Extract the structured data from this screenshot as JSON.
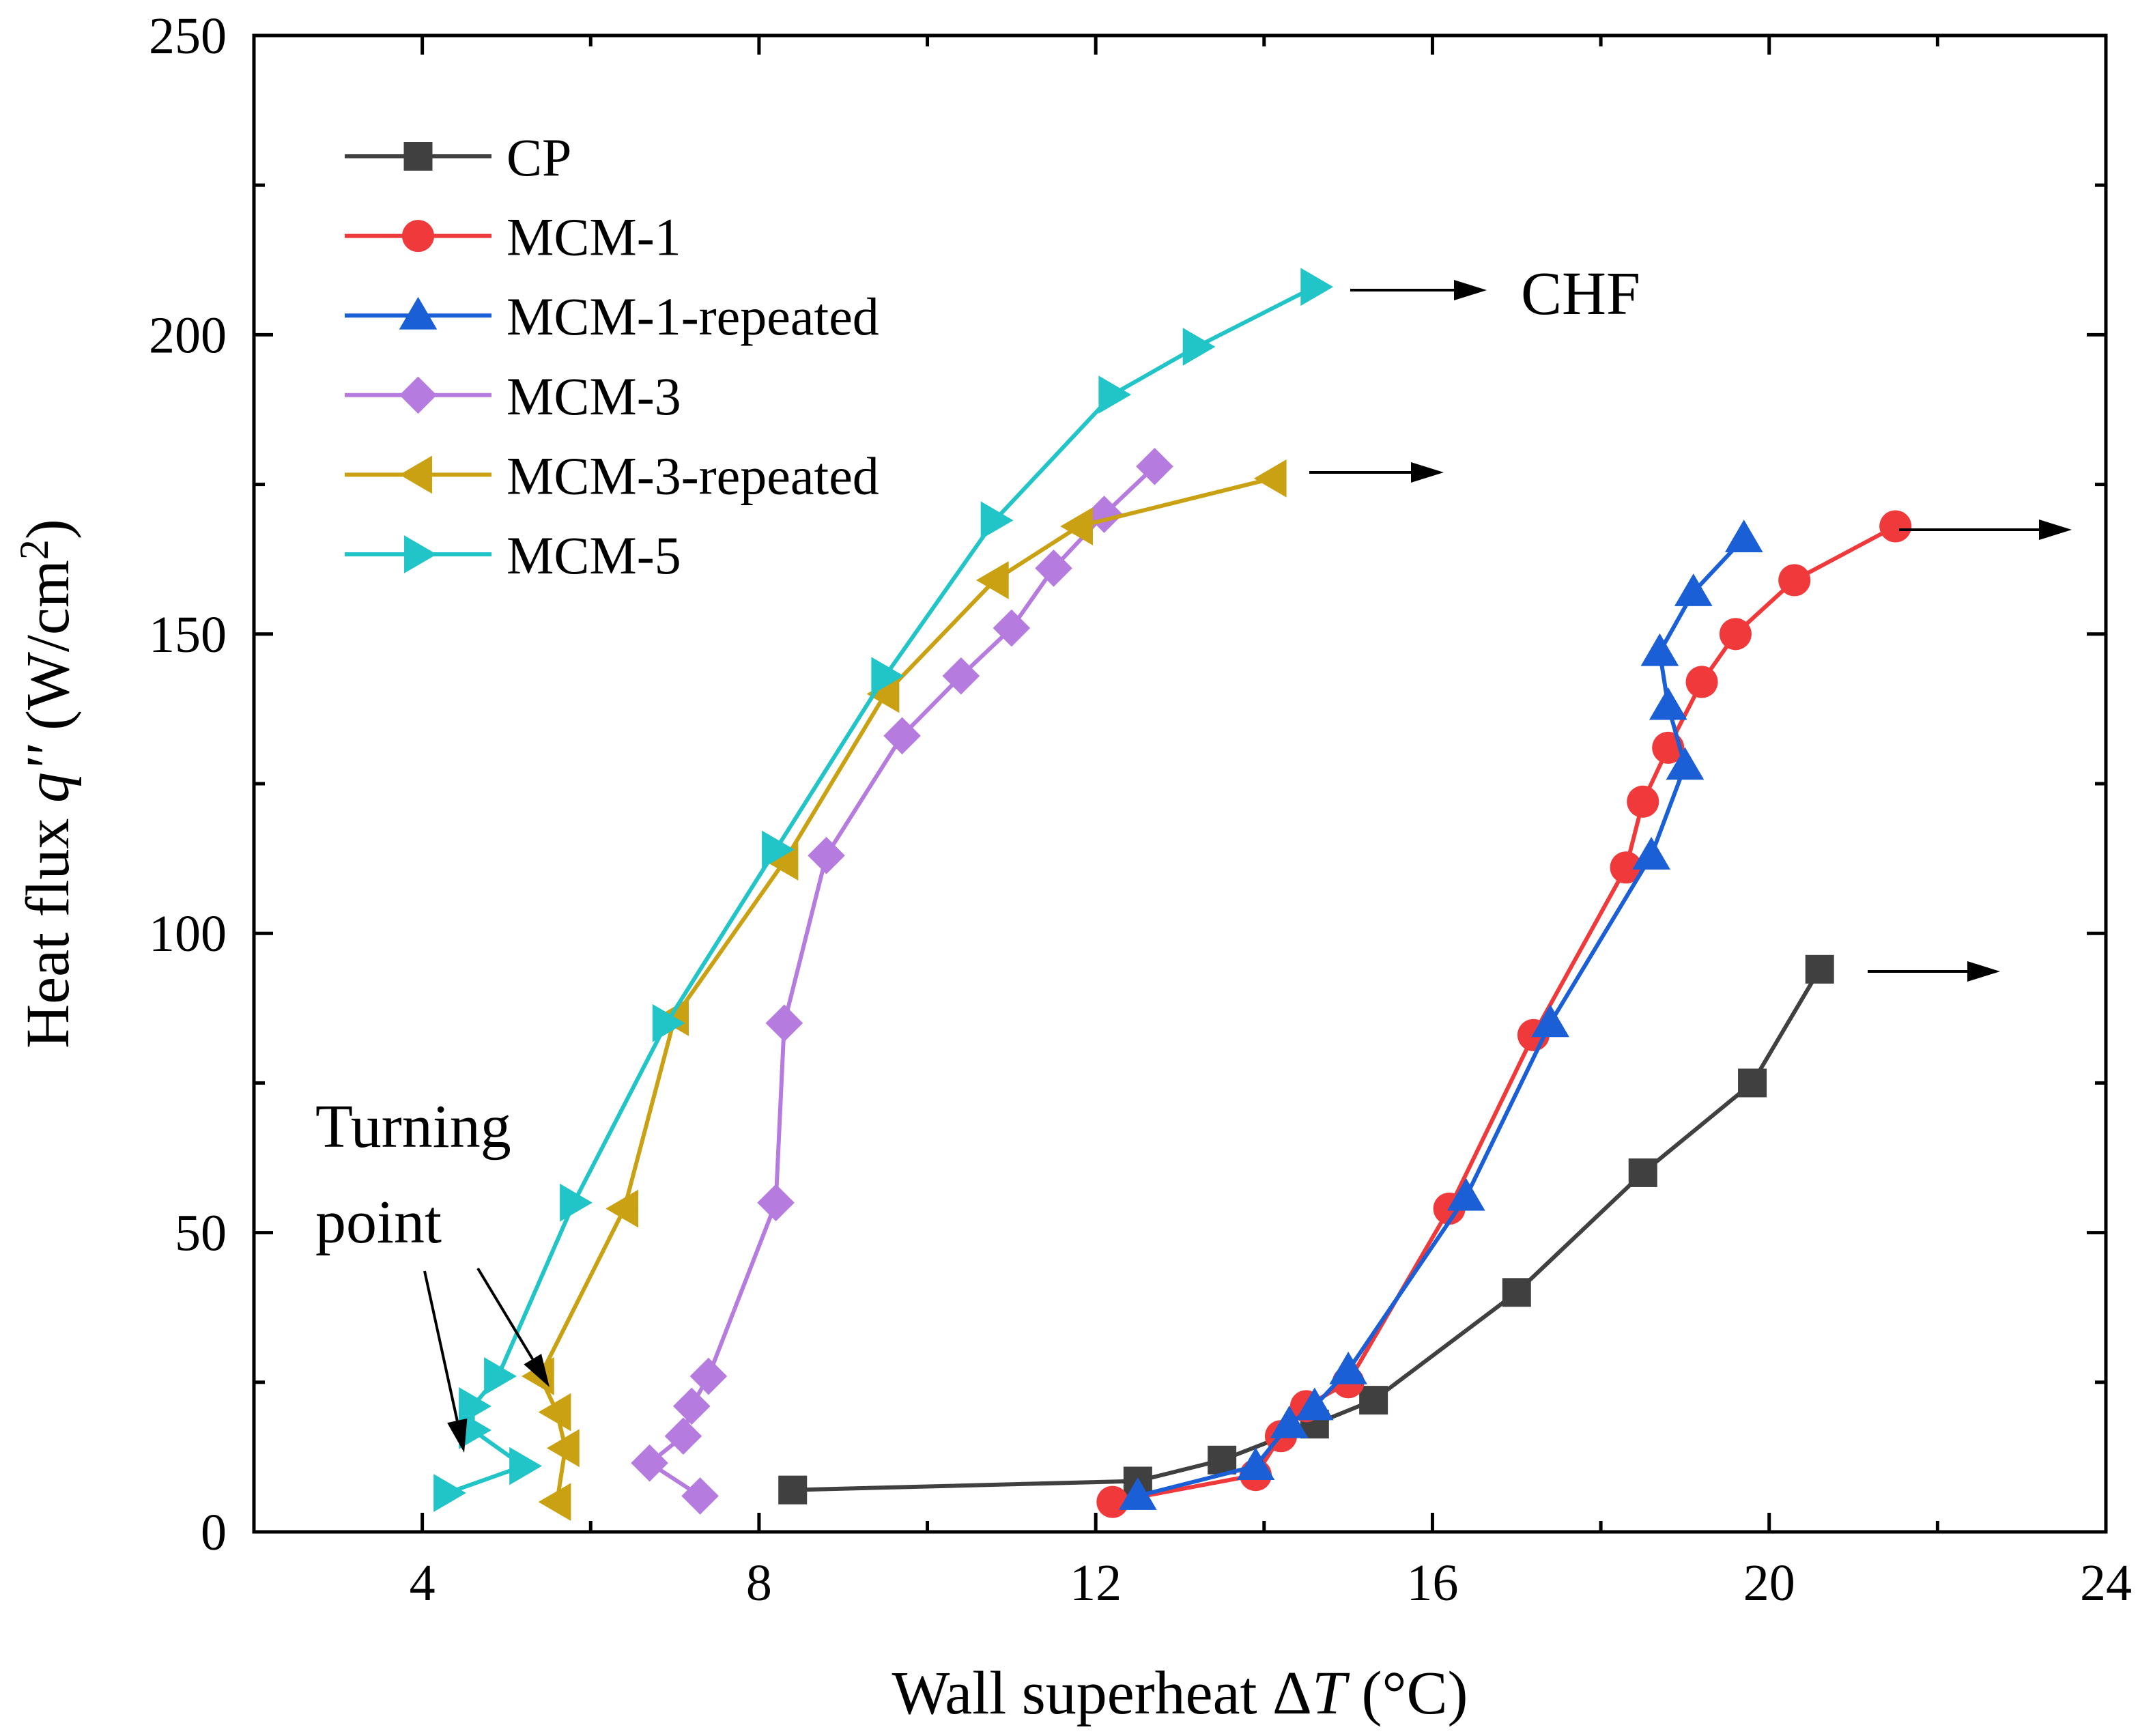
{
  "chart_data": {
    "type": "line",
    "xlabel": "Wall superheat ΔT (°C)",
    "ylabel": "Heat flux q'' (W/cm²)",
    "xlabel_parts": {
      "main": "Wall superheat Δ",
      "italic": "T",
      "unit": " (°C)"
    },
    "ylabel_parts": {
      "main": "Heat flux ",
      "italic": "q''",
      "unit": " (W/cm",
      "sup": "2",
      "close": ")"
    },
    "xlim": [
      2,
      24
    ],
    "ylim": [
      0,
      250
    ],
    "xticks": [
      4,
      8,
      12,
      16,
      20,
      24
    ],
    "yticks": [
      0,
      50,
      100,
      150,
      200,
      250
    ],
    "x_minor_step": 2,
    "y_minor_step": 25,
    "grid": false,
    "legend_position": "top-left",
    "series": [
      {
        "name": "CP",
        "color": "#404040",
        "marker": "square",
        "x": [
          8.4,
          12.5,
          13.5,
          14.6,
          15.3,
          17.0,
          18.5,
          19.8,
          20.6
        ],
        "y": [
          7,
          8.5,
          12,
          18,
          22,
          40,
          60,
          75,
          94
        ]
      },
      {
        "name": "MCM-1",
        "color": "#f0393b",
        "marker": "circle",
        "x": [
          12.2,
          13.9,
          14.2,
          14.5,
          15.0,
          16.2,
          17.2,
          18.3,
          18.5,
          18.8,
          19.2,
          19.6,
          20.3,
          21.5
        ],
        "y": [
          5,
          9.5,
          16,
          21,
          25,
          54,
          83,
          111,
          122,
          131,
          142,
          150,
          159,
          168
        ]
      },
      {
        "name": "MCM-1-repeated",
        "color": "#1a5fd6",
        "marker": "triangle-up",
        "x": [
          12.5,
          13.9,
          14.3,
          14.6,
          15.0,
          16.4,
          17.4,
          18.6,
          19.0,
          18.8,
          18.7,
          19.1,
          19.7
        ],
        "y": [
          6,
          11,
          18,
          21,
          27,
          56,
          85,
          113,
          128,
          138,
          147,
          157,
          166
        ]
      },
      {
        "name": "MCM-3",
        "color": "#b57bdf",
        "marker": "diamond",
        "x": [
          7.3,
          6.7,
          7.1,
          7.2,
          7.4,
          8.2,
          8.3,
          8.8,
          9.7,
          10.4,
          11.0,
          11.5,
          12.1,
          12.7
        ],
        "y": [
          6,
          11.5,
          16,
          21,
          26,
          55,
          85,
          113,
          133,
          143,
          151,
          161,
          170,
          178
        ]
      },
      {
        "name": "MCM-3-repeated",
        "color": "#c9a112",
        "marker": "triangle-left",
        "x": [
          5.6,
          5.7,
          5.6,
          5.4,
          6.4,
          7.0,
          8.3,
          9.5,
          10.8,
          11.8,
          14.1
        ],
        "y": [
          5,
          14,
          20,
          26,
          54,
          86,
          112,
          140,
          159,
          168,
          176
        ]
      },
      {
        "name": "MCM-5",
        "color": "#21c4c7",
        "marker": "triangle-right",
        "x": [
          4.3,
          5.2,
          4.6,
          4.6,
          4.9,
          5.8,
          6.9,
          8.2,
          9.5,
          10.8,
          12.2,
          13.2,
          14.6
        ],
        "y": [
          6.5,
          11,
          17,
          21,
          26,
          55,
          85,
          114,
          143,
          169,
          190,
          198,
          208
        ]
      }
    ],
    "annotations": {
      "chf_label": "CHF",
      "turning_point_line1": "Turning",
      "turning_point_line2": "point"
    }
  }
}
